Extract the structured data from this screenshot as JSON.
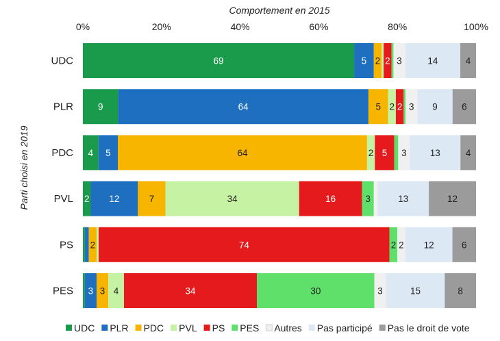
{
  "chart_data": {
    "type": "bar",
    "orientation": "horizontal",
    "stacked": "percent",
    "title": "",
    "xlabel": "Comportement en 2015",
    "ylabel": "Parti choisi en 2019",
    "xlim": [
      0,
      100
    ],
    "x_ticks": [
      "0%",
      "20%",
      "40%",
      "60%",
      "80%",
      "100%"
    ],
    "x_axis_position": "top",
    "grid": false,
    "legend_position": "bottom",
    "categories": [
      "UDC",
      "PLR",
      "PDC",
      "PVL",
      "PS",
      "PES"
    ],
    "series": [
      {
        "name": "UDC",
        "color": "#1a9a4b",
        "values": [
          69,
          9,
          4,
          2,
          0.5,
          0.5
        ]
      },
      {
        "name": "PLR",
        "color": "#1f6fc1",
        "values": [
          5,
          64,
          5,
          12,
          1,
          3
        ]
      },
      {
        "name": "PDC",
        "color": "#f7b500",
        "values": [
          2,
          5,
          64,
          7,
          2,
          3
        ]
      },
      {
        "name": "PVL",
        "color": "#c6f2a4",
        "values": [
          0.5,
          2,
          2,
          34,
          0.5,
          4
        ]
      },
      {
        "name": "PS",
        "color": "#e41a1c",
        "values": [
          2,
          2,
          5,
          16,
          74,
          34
        ]
      },
      {
        "name": "PES",
        "color": "#5fe06a",
        "values": [
          0.5,
          0.5,
          1,
          3,
          2,
          30
        ]
      },
      {
        "name": "Autres",
        "color": "#f0f0f0",
        "values": [
          3,
          3,
          3,
          1,
          2,
          3
        ]
      },
      {
        "name": "Pas participé",
        "color": "#dde8f5",
        "values": [
          14,
          9,
          13,
          13,
          12,
          15
        ]
      },
      {
        "name": "Pas le droit de vote",
        "color": "#9b9b9b",
        "values": [
          4,
          6,
          4,
          12,
          6,
          8
        ]
      }
    ],
    "data_labels": [
      [
        "69",
        "5",
        "2",
        "",
        "2",
        "",
        "3",
        "14",
        "4"
      ],
      [
        "9",
        "64",
        "5",
        "2",
        "2",
        "",
        "3",
        "9",
        "6"
      ],
      [
        "4",
        "5",
        "64",
        "2",
        "5",
        "",
        "3",
        "13",
        "4"
      ],
      [
        "2",
        "12",
        "7",
        "34",
        "16",
        "3",
        "",
        "13",
        "12"
      ],
      [
        "",
        "",
        "2",
        "",
        "74",
        "2",
        "2",
        "12",
        "6"
      ],
      [
        "",
        "3",
        "3",
        "4",
        "34",
        "30",
        "3",
        "15",
        "8"
      ]
    ]
  }
}
